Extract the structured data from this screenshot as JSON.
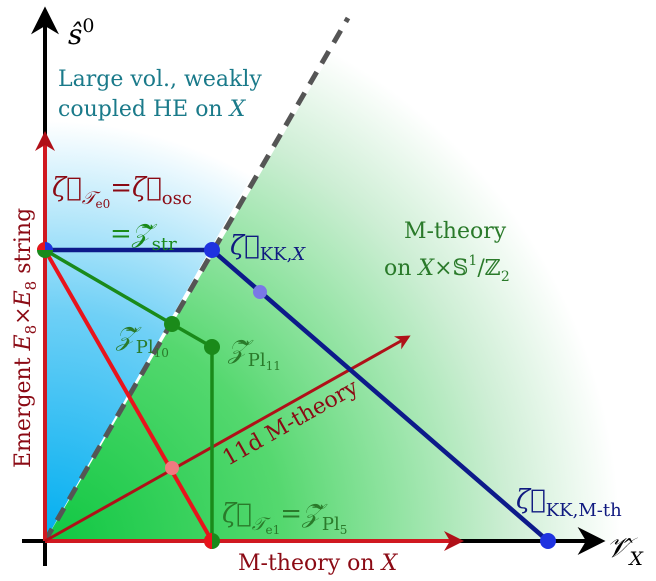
{
  "axes": {
    "y_label": "ŝ",
    "y_label_sup": "0",
    "x_label": "𝒱̂",
    "x_label_sub": "X"
  },
  "regions": {
    "blue": {
      "line1": "Large vol., weakly",
      "line2_text": "coupled HE on ",
      "line2_var": "X"
    },
    "green": {
      "line1": "M-theory",
      "line2_prefix": "on ",
      "line2_var": "X",
      "line2_rest": "×𝕊",
      "line2_sup": "1",
      "line2_tail": "/ℤ",
      "line2_sub": "2"
    }
  },
  "lines": {
    "emergent_string": {
      "prefix": "Emergent ",
      "e": "E",
      "sub": "8",
      "times": "×",
      "suffix": " string"
    },
    "m_theory_on_x": {
      "text": "M-theory on ",
      "var": "X"
    },
    "eleven_d": {
      "text": "11d M-theory"
    }
  },
  "points": {
    "zeta_tau_e0": {
      "main": "ζ⃗",
      "sub": "𝒯",
      "subsub": "e0",
      "eq": "=",
      "rhs": "ζ⃗",
      "rhs_sub": "osc"
    },
    "z_str": {
      "eq": "=",
      "main": "𝒵⃗",
      "sub": "str"
    },
    "zeta_kk_x": {
      "main": "ζ⃗",
      "sub": "KK,",
      "sub_var": "X"
    },
    "z_pl10": {
      "main": "𝒵⃗",
      "sub": "Pl",
      "subsub": "10"
    },
    "z_pl11": {
      "main": "𝒵⃗",
      "sub": "Pl",
      "subsub": "11"
    },
    "zeta_tau_e1": {
      "main": "ζ⃗",
      "sub": "𝒯",
      "subsub": "e1",
      "eq": "=",
      "rhs": "𝒵⃗",
      "rhs_sub": "Pl",
      "rhs_subsub": "5"
    },
    "zeta_kk_mth": {
      "main": "ζ⃗",
      "sub": "KK,M-th"
    }
  },
  "colors": {
    "axis": "#000000",
    "red": "#e8141c",
    "dark_red": "#8b0a14",
    "navy": "#0d1a8a",
    "green": "#1a8a1a",
    "label_blue": "#1a7a8a",
    "label_green": "#2a7a2a",
    "label_navy": "#101a80",
    "dashed": "#555555",
    "dot_blue": "#1f33e0",
    "dot_light_blue": "#7a78e6",
    "dot_green": "#1a8a1a",
    "dot_pink": "#f07a80"
  }
}
